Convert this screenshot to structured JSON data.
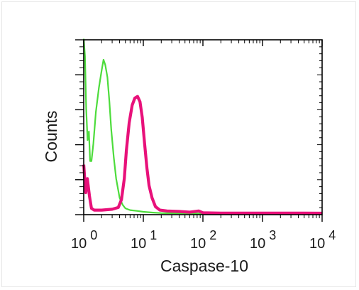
{
  "chart_data": {
    "type": "line",
    "title": "",
    "xlabel": "Caspase-10",
    "ylabel": "Counts",
    "x_scale": "log",
    "xlim": [
      1,
      10000
    ],
    "ylim": [
      0,
      100
    ],
    "grid": false,
    "x_tick_labels": [
      {
        "base": "10",
        "exp": "0",
        "value": 1
      },
      {
        "base": "10",
        "exp": "1",
        "value": 10
      },
      {
        "base": "10",
        "exp": "2",
        "value": 100
      },
      {
        "base": "10",
        "exp": "3",
        "value": 1000
      },
      {
        "base": "10",
        "exp": "4",
        "value": 10000
      }
    ],
    "series": [
      {
        "color": "#4ddc3c",
        "points": [
          [
            1.0,
            100
          ],
          [
            1.05,
            90
          ],
          [
            1.1,
            60
          ],
          [
            1.16,
            42
          ],
          [
            1.22,
            47
          ],
          [
            1.28,
            30
          ],
          [
            1.35,
            30
          ],
          [
            1.45,
            40
          ],
          [
            1.6,
            58
          ],
          [
            1.8,
            72
          ],
          [
            2.0,
            82
          ],
          [
            2.15,
            88
          ],
          [
            2.3,
            85
          ],
          [
            2.5,
            78
          ],
          [
            2.7,
            64
          ],
          [
            2.9,
            48
          ],
          [
            3.2,
            32
          ],
          [
            3.5,
            20
          ],
          [
            4.0,
            9
          ],
          [
            4.5,
            5
          ],
          [
            5.0,
            3
          ],
          [
            6.0,
            2
          ],
          [
            8.0,
            1.5
          ],
          [
            10,
            1
          ],
          [
            14,
            0.6
          ],
          [
            20,
            0.3
          ],
          [
            30,
            0.2
          ],
          [
            100,
            0
          ],
          [
            10000,
            0
          ]
        ]
      },
      {
        "color": "#e8117a",
        "points": [
          [
            1.0,
            28
          ],
          [
            1.08,
            12
          ],
          [
            1.15,
            20
          ],
          [
            1.25,
            10
          ],
          [
            1.35,
            3
          ],
          [
            1.5,
            2
          ],
          [
            2.0,
            2
          ],
          [
            3.0,
            2.5
          ],
          [
            3.8,
            3.5
          ],
          [
            4.3,
            8
          ],
          [
            4.8,
            20
          ],
          [
            5.2,
            36
          ],
          [
            5.8,
            52
          ],
          [
            6.5,
            62
          ],
          [
            7.2,
            66
          ],
          [
            8.0,
            67
          ],
          [
            8.8,
            64
          ],
          [
            9.6,
            55
          ],
          [
            10.5,
            40
          ],
          [
            11.5,
            26
          ],
          [
            12.5,
            16
          ],
          [
            14,
            9
          ],
          [
            16,
            4
          ],
          [
            19,
            2
          ],
          [
            25,
            1.5
          ],
          [
            40,
            1.2
          ],
          [
            60,
            0.8
          ],
          [
            85,
            1.5
          ],
          [
            100,
            0.5
          ],
          [
            200,
            0.3
          ],
          [
            1000,
            0.3
          ],
          [
            5000,
            0.3
          ],
          [
            10000,
            0.2
          ]
        ]
      }
    ]
  }
}
